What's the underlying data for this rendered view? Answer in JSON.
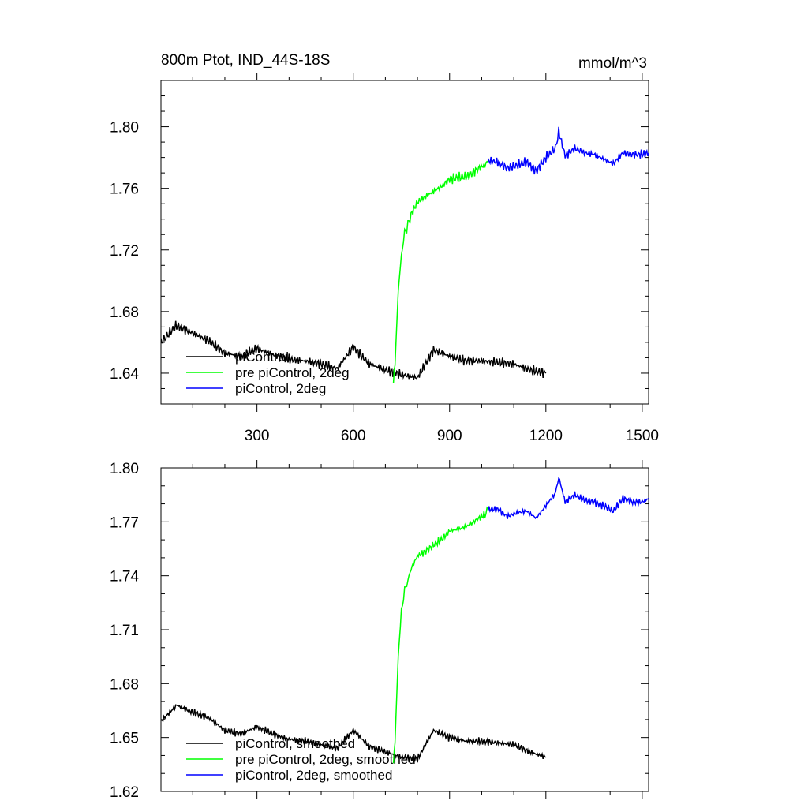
{
  "figure": {
    "title_left": "800m Ptot, IND_44S-18S",
    "title_right": "mmol/m^3"
  },
  "colors": {
    "piControl": "#000000",
    "pre_piControl_2deg": "#00ff00",
    "piControl_2deg": "#0000ff"
  },
  "chart_data": [
    {
      "type": "line",
      "title": "800m Ptot, IND_44S-18S",
      "units": "mmol/m^3",
      "xlim": [
        1,
        1520
      ],
      "ylim": [
        1.62,
        1.83
      ],
      "xticks": [
        300,
        600,
        900,
        1200,
        1500
      ],
      "xtick_labels": [
        "300",
        "600",
        "900",
        "1200",
        "1500"
      ],
      "yticks": [
        1.64,
        1.68,
        1.72,
        1.76,
        1.8
      ],
      "ytick_labels": [
        "1.64",
        "1.68",
        "1.72",
        "1.76",
        "1.80"
      ],
      "grid": false,
      "legend_position": "bottom-left",
      "series": [
        {
          "name": "piControl",
          "color": "#000000",
          "x": [
            1,
            50,
            100,
            150,
            200,
            250,
            300,
            350,
            400,
            450,
            500,
            550,
            600,
            650,
            700,
            750,
            800,
            850,
            900,
            950,
            1000,
            1050,
            1100,
            1150,
            1200
          ],
          "y": [
            1.66,
            1.671,
            1.666,
            1.661,
            1.653,
            1.651,
            1.656,
            1.652,
            1.649,
            1.648,
            1.646,
            1.643,
            1.657,
            1.646,
            1.642,
            1.639,
            1.637,
            1.655,
            1.651,
            1.648,
            1.648,
            1.647,
            1.646,
            1.642,
            1.64
          ]
        },
        {
          "name": "pre piControl, 2deg",
          "color": "#00ff00",
          "x": [
            725,
            730,
            740,
            750,
            760,
            770,
            780,
            800,
            820,
            850,
            880,
            900,
            930,
            960,
            990,
            1010,
            1020
          ],
          "y": [
            1.634,
            1.645,
            1.693,
            1.717,
            1.731,
            1.736,
            1.743,
            1.751,
            1.754,
            1.758,
            1.762,
            1.766,
            1.767,
            1.768,
            1.773,
            1.775,
            1.777
          ]
        },
        {
          "name": "piControl, 2deg",
          "color": "#0000ff",
          "x": [
            1020,
            1050,
            1080,
            1110,
            1140,
            1170,
            1200,
            1230,
            1240,
            1260,
            1290,
            1320,
            1350,
            1380,
            1410,
            1440,
            1470,
            1500,
            1520
          ],
          "y": [
            1.778,
            1.777,
            1.773,
            1.775,
            1.777,
            1.771,
            1.78,
            1.786,
            1.797,
            1.781,
            1.786,
            1.783,
            1.782,
            1.779,
            1.776,
            1.783,
            1.782,
            1.782,
            1.783
          ]
        }
      ]
    },
    {
      "type": "line",
      "xlim": [
        1,
        1520
      ],
      "ylim": [
        1.62,
        1.8
      ],
      "xticks": [
        300,
        600,
        900,
        1200,
        1500
      ],
      "yticks": [
        1.62,
        1.65,
        1.68,
        1.71,
        1.74,
        1.77,
        1.8
      ],
      "ytick_labels": [
        "1.62",
        "1.65",
        "1.68",
        "1.71",
        "1.74",
        "1.77",
        "1.80"
      ],
      "grid": false,
      "legend_position": "bottom-left",
      "series": [
        {
          "name": "piControl, smoothed",
          "color": "#000000",
          "x": [
            1,
            50,
            100,
            150,
            200,
            250,
            300,
            350,
            400,
            450,
            500,
            550,
            600,
            650,
            700,
            750,
            800,
            850,
            900,
            950,
            1000,
            1050,
            1100,
            1150,
            1200
          ],
          "y": [
            1.659,
            1.668,
            1.664,
            1.661,
            1.654,
            1.652,
            1.656,
            1.652,
            1.649,
            1.648,
            1.646,
            1.644,
            1.654,
            1.645,
            1.642,
            1.639,
            1.638,
            1.654,
            1.65,
            1.648,
            1.648,
            1.647,
            1.646,
            1.642,
            1.639
          ]
        },
        {
          "name": "pre piControl, 2deg, smoothed",
          "color": "#00ff00",
          "x": [
            725,
            730,
            740,
            750,
            760,
            770,
            780,
            800,
            820,
            850,
            880,
            900,
            930,
            960,
            990,
            1010,
            1020
          ],
          "y": [
            1.636,
            1.647,
            1.695,
            1.72,
            1.732,
            1.737,
            1.744,
            1.751,
            1.753,
            1.757,
            1.761,
            1.765,
            1.766,
            1.768,
            1.772,
            1.774,
            1.777
          ]
        },
        {
          "name": "piControl, 2deg, smoothed",
          "color": "#0000ff",
          "x": [
            1020,
            1050,
            1080,
            1110,
            1140,
            1170,
            1200,
            1230,
            1240,
            1260,
            1290,
            1320,
            1350,
            1380,
            1410,
            1440,
            1470,
            1500,
            1520
          ],
          "y": [
            1.777,
            1.777,
            1.773,
            1.775,
            1.776,
            1.772,
            1.779,
            1.786,
            1.795,
            1.781,
            1.785,
            1.782,
            1.781,
            1.779,
            1.776,
            1.783,
            1.781,
            1.781,
            1.783
          ]
        }
      ]
    }
  ]
}
